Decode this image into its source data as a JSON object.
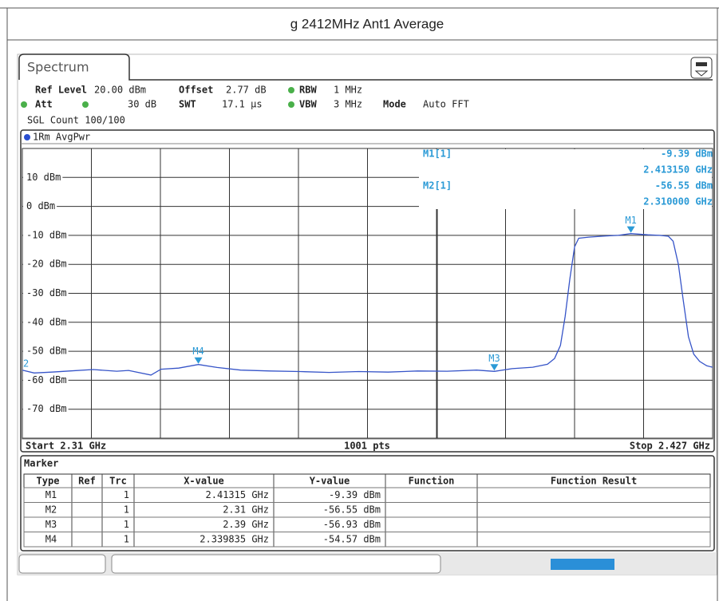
{
  "header": {
    "title": "g 2412MHz Ant1 Average"
  },
  "panel": {
    "tab": "Spectrum",
    "settings": [
      {
        "label": "Ref Level",
        "value": "20.00 dBm"
      },
      {
        "label": "Offset",
        "value": "2.77 dB"
      },
      {
        "label": "RBW",
        "value": "1 MHz"
      },
      {
        "label": "Att",
        "value": "30 dB"
      },
      {
        "label": "SWT",
        "value": "17.1 µs"
      },
      {
        "label": "VBW",
        "value": "3 MHz"
      },
      {
        "label": "Mode",
        "value": "Auto FFT"
      }
    ],
    "count": "SGL Count 100/100"
  },
  "chart_data": {
    "type": "line",
    "trace_label": "1Rm AvgPwr",
    "x": [
      2.31,
      2.312,
      2.315,
      2.318,
      2.322,
      2.326,
      2.328,
      2.3318,
      2.3335,
      2.3365,
      2.339835,
      2.343,
      2.347,
      2.352,
      2.357,
      2.362,
      2.367,
      2.372,
      2.377,
      2.382,
      2.387,
      2.39,
      2.393,
      2.3965,
      2.399,
      2.4002,
      2.4012,
      2.402,
      2.4028,
      2.4036,
      2.4043,
      2.406,
      2.409,
      2.411,
      2.41315,
      2.416,
      2.418,
      2.4195,
      2.4203,
      2.4212,
      2.422,
      2.4229,
      2.4238,
      2.4248,
      2.426,
      2.427
    ],
    "series": [
      {
        "color": "#3654c8",
        "values": [
          -56.5,
          -57.5,
          -57.2,
          -56.8,
          -56.3,
          -56.9,
          -56.6,
          -58.2,
          -56.2,
          -55.8,
          -54.57,
          -55.6,
          -56.5,
          -56.8,
          -57.0,
          -57.3,
          -57.0,
          -57.2,
          -56.8,
          -56.9,
          -56.5,
          -56.93,
          -56.0,
          -55.5,
          -54.5,
          -52.5,
          -48,
          -38,
          -25,
          -14,
          -11,
          -10.6,
          -10.2,
          -10.0,
          -9.39,
          -9.8,
          -10.0,
          -10.3,
          -12,
          -20,
          -32,
          -45,
          -51,
          -53.5,
          -55,
          -55.5
        ]
      }
    ],
    "xlim": [
      2.31,
      2.427
    ],
    "ylim": [
      -80,
      20
    ],
    "yticks": [
      {
        "value": 10,
        "label": "10 dBm"
      },
      {
        "value": 0,
        "label": "0 dBm"
      },
      {
        "value": -10,
        "label": "-10 dBm"
      },
      {
        "value": -20,
        "label": "-20 dBm"
      },
      {
        "value": -30,
        "label": "-30 dBm"
      },
      {
        "value": -40,
        "label": "-40 dBm"
      },
      {
        "value": -50,
        "label": "-50 dBm"
      },
      {
        "value": -60,
        "label": "-60 dBm"
      },
      {
        "value": -70,
        "label": "-70 dBm"
      }
    ],
    "grid": true,
    "markers": [
      {
        "label": "M1",
        "x": 2.41315,
        "y": -9.39
      },
      {
        "label": "2",
        "x": 2.31,
        "y": -56.55
      },
      {
        "label": "M3",
        "x": 2.39,
        "y": -56.93
      },
      {
        "label": "M4",
        "x": 2.339835,
        "y": -54.57
      }
    ],
    "readouts": [
      {
        "name": "M1[1]",
        "level": "-9.39 dBm",
        "freq": "2.413150 GHz"
      },
      {
        "name": "M2[1]",
        "level": "-56.55 dBm",
        "freq": "2.310000 GHz"
      }
    ],
    "start": "Start 2.31 GHz",
    "points": "1001 pts",
    "stop": "Stop 2.427 GHz"
  },
  "marker_table": {
    "title": "Marker",
    "columns": [
      "Type",
      "Ref",
      "Trc",
      "X-value",
      "Y-value",
      "Function",
      "Function Result"
    ],
    "rows": [
      [
        "M1",
        "",
        "1",
        "2.41315 GHz",
        "-9.39 dBm",
        "",
        ""
      ],
      [
        "M2",
        "",
        "1",
        "2.31 GHz",
        "-56.55 dBm",
        "",
        ""
      ],
      [
        "M3",
        "",
        "1",
        "2.39 GHz",
        "-56.93 dBm",
        "",
        ""
      ],
      [
        "M4",
        "",
        "1",
        "2.339835 GHz",
        "-54.57 dBm",
        "",
        ""
      ]
    ]
  }
}
